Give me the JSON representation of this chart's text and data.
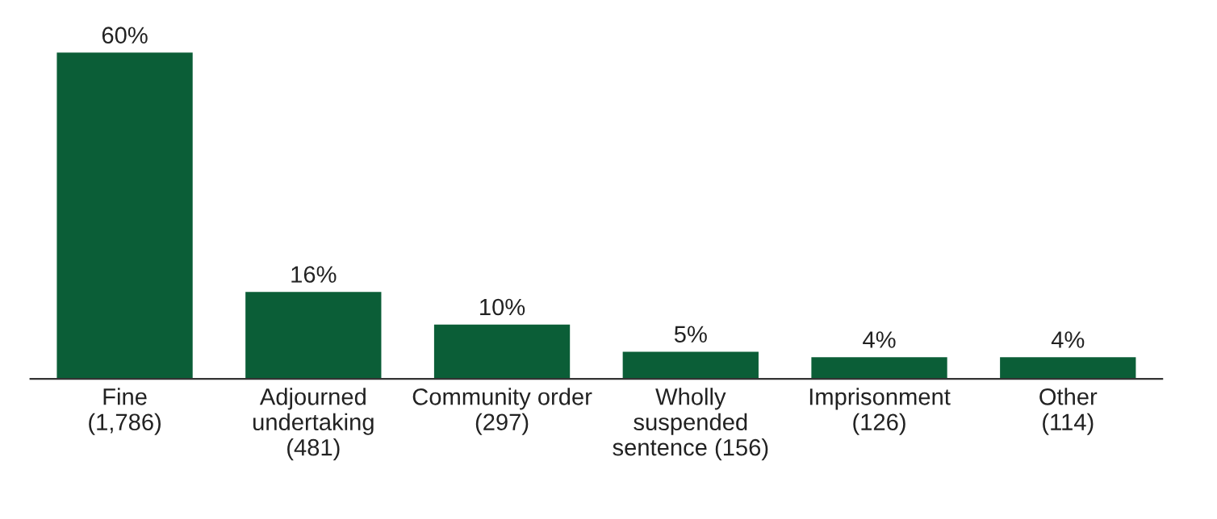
{
  "chart_data": {
    "type": "bar",
    "categories": [
      "Fine\n(1,786)",
      "Adjourned\nundertaking\n(481)",
      "Community order\n(297)",
      "Wholly\nsuspended\nsentence (156)",
      "Imprisonment\n(126)",
      "Other\n(114)"
    ],
    "values": [
      60,
      16,
      10,
      5,
      4,
      4
    ],
    "value_labels": [
      "60%",
      "16%",
      "10%",
      "5%",
      "4%",
      "4%"
    ],
    "color": "#0b5e37",
    "grid": false,
    "legend": false
  }
}
